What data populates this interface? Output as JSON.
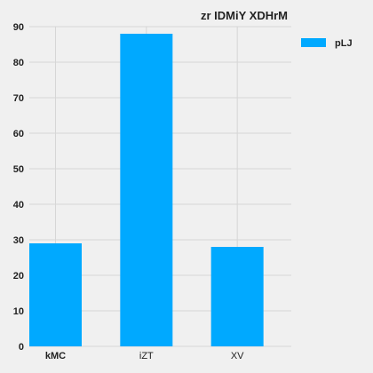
{
  "chart_data": {
    "type": "bar",
    "title": "zr IDMiY XDHrM",
    "categories": [
      "kMC",
      "iZT",
      "XV"
    ],
    "series": [
      {
        "name": "pLJ",
        "values": [
          29,
          88,
          28
        ],
        "color": "#00a9ff"
      }
    ],
    "ylim": [
      0,
      90
    ],
    "yticks": [
      0,
      10,
      20,
      30,
      40,
      50,
      60,
      70,
      80,
      90
    ],
    "grid": true,
    "legend": "top-right",
    "background": "#f0f0f0"
  }
}
